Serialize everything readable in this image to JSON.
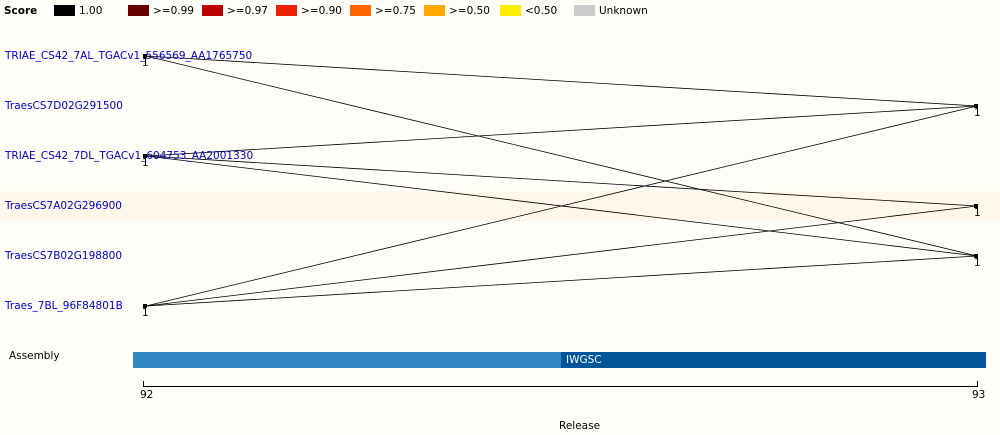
{
  "legend": {
    "title": "Score",
    "items": [
      {
        "label": "1.00",
        "color": "#000000"
      },
      {
        "label": ">=0.99",
        "color": "#660000"
      },
      {
        "label": ">=0.97",
        "color": "#bb0000"
      },
      {
        "label": ">=0.90",
        "color": "#ee2200"
      },
      {
        "label": ">=0.75",
        "color": "#ff6600"
      },
      {
        "label": ">=0.50",
        "color": "#ffaa00"
      },
      {
        "label": "<0.50",
        "color": "#ffee00"
      },
      {
        "label": "Unknown",
        "color": "#cccccc"
      }
    ]
  },
  "genes": [
    "TRIAE_CS42_7AL_TGACv1_556569_AA1765750",
    "TraesCS7D02G291500",
    "TRIAE_CS42_7DL_TGACv1_604753_AA2001330",
    "TraesCS7A02G296900",
    "TraesCS7B02G198800",
    "Traes_7BL_96F84801B"
  ],
  "left_counts": [
    "1",
    "1",
    "1"
  ],
  "right_counts": [
    "1",
    "1",
    "1"
  ],
  "assembly": {
    "label": "Assembly",
    "name": "IWGSC"
  },
  "axis": {
    "ticks": [
      "92",
      "93"
    ],
    "title": "Release"
  },
  "links": [
    {
      "from": 0,
      "to": 4
    },
    {
      "from": 0,
      "to": 1
    },
    {
      "from": 2,
      "to": 3
    },
    {
      "from": 2,
      "to": 1
    },
    {
      "from": 2,
      "to": 4
    },
    {
      "from": 5,
      "to": 1
    },
    {
      "from": 5,
      "to": 3
    },
    {
      "from": 5,
      "to": 4
    }
  ]
}
